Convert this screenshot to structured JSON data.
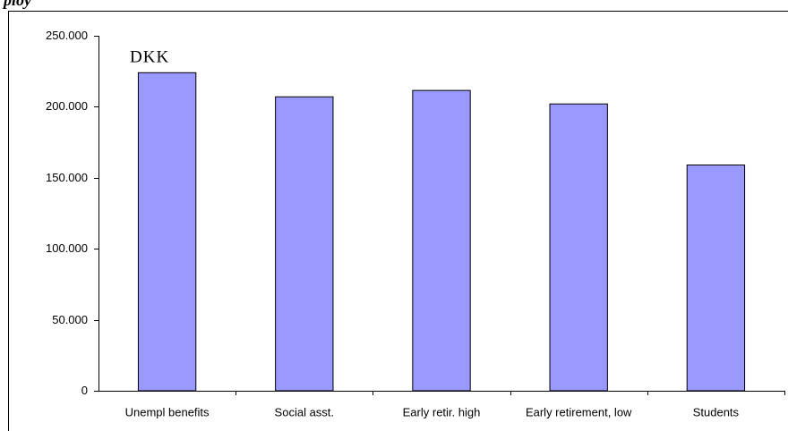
{
  "chart_data": {
    "type": "bar",
    "title": "ploy",
    "annotation": "DKK",
    "categories": [
      "Unempl benefits",
      "Social asst.",
      "Early retir. high",
      "Early retirement, low",
      "Students"
    ],
    "values": [
      224000,
      207000,
      211500,
      202000,
      159000
    ],
    "color": "#9999ff",
    "ylim": [
      0,
      250000
    ],
    "yticks": [
      {
        "value": 0,
        "label": "0"
      },
      {
        "value": 50000,
        "label": "50.000"
      },
      {
        "value": 100000,
        "label": "100.000"
      },
      {
        "value": 150000,
        "label": "150.000"
      },
      {
        "value": 200000,
        "label": "200.000"
      },
      {
        "value": 250000,
        "label": "250.000"
      }
    ],
    "grid": false
  }
}
